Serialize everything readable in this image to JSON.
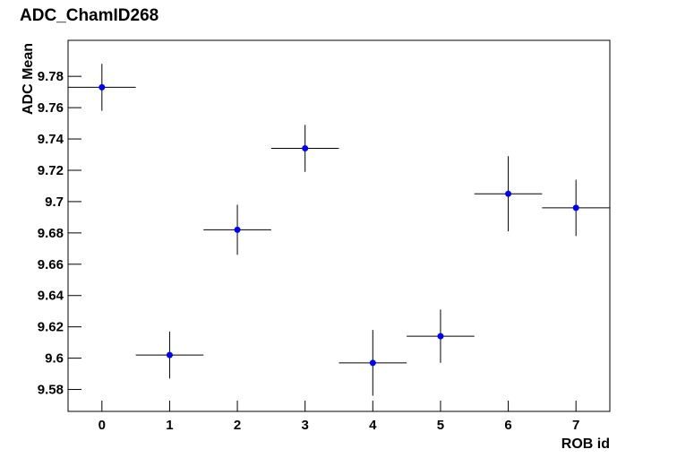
{
  "chart_data": {
    "type": "scatter",
    "title": "ADC_ChamID268",
    "x_label": "ROB id",
    "y_label": "ADC Mean",
    "x": [
      0,
      1,
      2,
      3,
      4,
      5,
      6,
      7
    ],
    "xerr": 0.5,
    "series": [
      {
        "color": "#0000ff",
        "values": [
          9.773,
          9.602,
          9.682,
          9.734,
          9.597,
          9.614,
          9.705,
          9.696
        ],
        "errors": [
          0.015,
          0.015,
          0.016,
          0.015,
          0.021,
          0.017,
          0.024,
          0.018
        ]
      }
    ],
    "xlim": [
      -0.5,
      7.5
    ],
    "ylim": [
      9.566,
      9.803
    ],
    "xticks": [
      0,
      1,
      2,
      3,
      4,
      5,
      6,
      7
    ],
    "yticks": [
      9.58,
      9.6,
      9.62,
      9.64,
      9.66,
      9.68,
      9.7,
      9.72,
      9.74,
      9.76,
      9.78
    ]
  }
}
